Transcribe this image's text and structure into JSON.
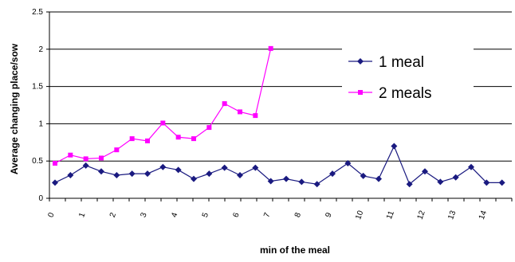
{
  "chart_data": {
    "type": "line",
    "title": "",
    "xlabel": "min of the meal",
    "ylabel": "Average changing place/sow",
    "ylim": [
      0,
      2.5
    ],
    "xlim": [
      0,
      15
    ],
    "y_ticks": [
      "0",
      "0.5",
      "1",
      "1.5",
      "2",
      "2.5"
    ],
    "x_ticks": [
      "0",
      "1",
      "2",
      "3",
      "4",
      "5",
      "6",
      "7",
      "8",
      "9",
      "10",
      "11",
      "12",
      "13",
      "14"
    ],
    "grid": true,
    "legend_position": "right",
    "series": [
      {
        "name": "1 meal",
        "color": "#1a1a80",
        "marker": "diamond",
        "x": [
          0,
          0.5,
          1,
          1.5,
          2,
          2.5,
          3,
          3.5,
          4,
          4.5,
          5,
          5.5,
          6,
          6.5,
          7,
          7.5,
          8,
          8.5,
          9,
          9.5,
          10,
          10.5,
          11,
          11.5,
          12,
          12.5,
          13,
          13.5,
          14,
          14.5
        ],
        "values": [
          0.21,
          0.31,
          0.44,
          0.36,
          0.31,
          0.33,
          0.33,
          0.42,
          0.38,
          0.26,
          0.33,
          0.41,
          0.31,
          0.41,
          0.23,
          0.26,
          0.22,
          0.19,
          0.33,
          0.47,
          0.3,
          0.26,
          0.7,
          0.19,
          0.36,
          0.22,
          0.28,
          0.42,
          0.21,
          0.21
        ]
      },
      {
        "name": "2 meals",
        "color": "#ff00ff",
        "marker": "square",
        "x": [
          0,
          0.5,
          1,
          1.5,
          2,
          2.5,
          3,
          3.5,
          4,
          4.5,
          5,
          5.5,
          6,
          6.5,
          7
        ],
        "values": [
          0.47,
          0.58,
          0.53,
          0.54,
          0.65,
          0.8,
          0.77,
          1.01,
          0.82,
          0.8,
          0.95,
          1.27,
          1.16,
          1.11,
          2.01
        ]
      }
    ]
  }
}
